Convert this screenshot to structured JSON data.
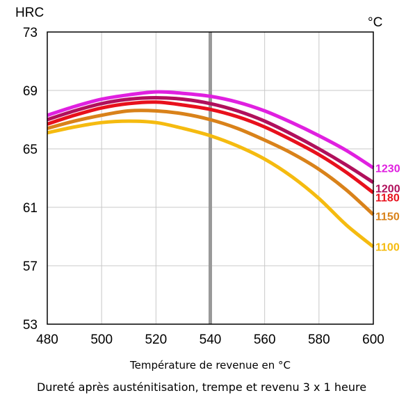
{
  "chart_data": {
    "type": "line",
    "y_unit_label": "HRC",
    "x_unit_label": "°C",
    "xlabel": "Température de revenue en °C",
    "caption": "Dureté après austénitisation, trempe et revenu 3 x 1 heure",
    "xlim": [
      480,
      600
    ],
    "ylim": [
      53,
      73
    ],
    "x_ticks": [
      "480",
      "500",
      "520",
      "540",
      "560",
      "580",
      "600"
    ],
    "y_ticks": [
      "53",
      "57",
      "61",
      "65",
      "69",
      "73"
    ],
    "x_tick_values": [
      480,
      500,
      520,
      540,
      560,
      580,
      600
    ],
    "y_tick_values": [
      53,
      57,
      61,
      65,
      69,
      73
    ],
    "grid": true,
    "vertical_marker": 540,
    "marker_color": "#999999",
    "series": [
      {
        "name": "1230",
        "color": "#e020e0",
        "x": [
          480,
          490,
          500,
          510,
          520,
          530,
          540,
          550,
          560,
          570,
          580,
          590,
          600
        ],
        "y": [
          67.3,
          67.9,
          68.4,
          68.7,
          68.9,
          68.8,
          68.6,
          68.2,
          67.6,
          66.8,
          65.9,
          64.9,
          63.7
        ]
      },
      {
        "name": "1200",
        "color": "#b0105c",
        "x": [
          480,
          490,
          500,
          510,
          520,
          530,
          540,
          550,
          560,
          570,
          580,
          590,
          600
        ],
        "y": [
          67.0,
          67.6,
          68.1,
          68.4,
          68.5,
          68.4,
          68.1,
          67.6,
          66.9,
          66.0,
          65.0,
          63.9,
          62.7
        ]
      },
      {
        "name": "1180",
        "color": "#e8101c",
        "x": [
          480,
          490,
          500,
          510,
          520,
          530,
          540,
          550,
          560,
          570,
          580,
          590,
          600
        ],
        "y": [
          66.7,
          67.3,
          67.8,
          68.1,
          68.2,
          68.0,
          67.7,
          67.2,
          66.5,
          65.6,
          64.6,
          63.4,
          62.0
        ]
      },
      {
        "name": "1150",
        "color": "#d9821a",
        "x": [
          480,
          490,
          500,
          510,
          520,
          530,
          540,
          550,
          560,
          570,
          580,
          590,
          600
        ],
        "y": [
          66.4,
          66.9,
          67.3,
          67.6,
          67.6,
          67.4,
          67.0,
          66.4,
          65.6,
          64.7,
          63.6,
          62.2,
          60.5
        ]
      },
      {
        "name": "1100",
        "color": "#f5bb10",
        "x": [
          480,
          490,
          500,
          510,
          520,
          530,
          540,
          550,
          560,
          570,
          580,
          590,
          600
        ],
        "y": [
          66.1,
          66.5,
          66.8,
          66.9,
          66.8,
          66.4,
          65.9,
          65.2,
          64.3,
          63.1,
          61.6,
          59.8,
          58.3
        ]
      }
    ],
    "series_label_y": [
      63.7,
      62.3,
      61.7,
      60.4,
      58.3
    ]
  }
}
